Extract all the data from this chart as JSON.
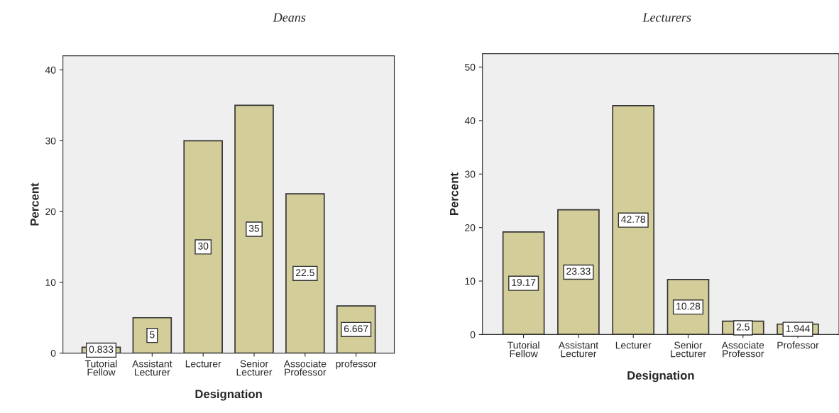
{
  "chart_data": [
    {
      "type": "bar",
      "title": "Deans",
      "xlabel": "Designation",
      "ylabel": "Percent",
      "categories": [
        "Tutorial\nFellow",
        "Assistant\nLecturer",
        "Lecturer",
        "Senior\nLecturer",
        "Associate\nProfessor",
        "professor"
      ],
      "values": [
        0.833,
        5,
        30,
        35,
        22.5,
        6.667
      ],
      "color": "#d3ce99",
      "ylim": [
        0,
        42
      ],
      "yticks": [
        0,
        10,
        20,
        30,
        40
      ],
      "data_labels": true,
      "grid": false,
      "legend": false
    },
    {
      "type": "bar",
      "title": "Lecturers",
      "xlabel": "Designation",
      "ylabel": "Percent",
      "categories": [
        "Tutorial\nFellow",
        "Assistant\nLecturer",
        "Lecturer",
        "Senior\nLecturer",
        "Associate\nProfessor",
        "Professor"
      ],
      "values": [
        19.17,
        23.33,
        42.78,
        10.28,
        2.5,
        1.944
      ],
      "color": "#d3ce99",
      "ylim": [
        0,
        52.5
      ],
      "yticks": [
        0,
        10,
        20,
        30,
        40,
        50
      ],
      "data_labels": true,
      "grid": false,
      "legend": false
    }
  ]
}
